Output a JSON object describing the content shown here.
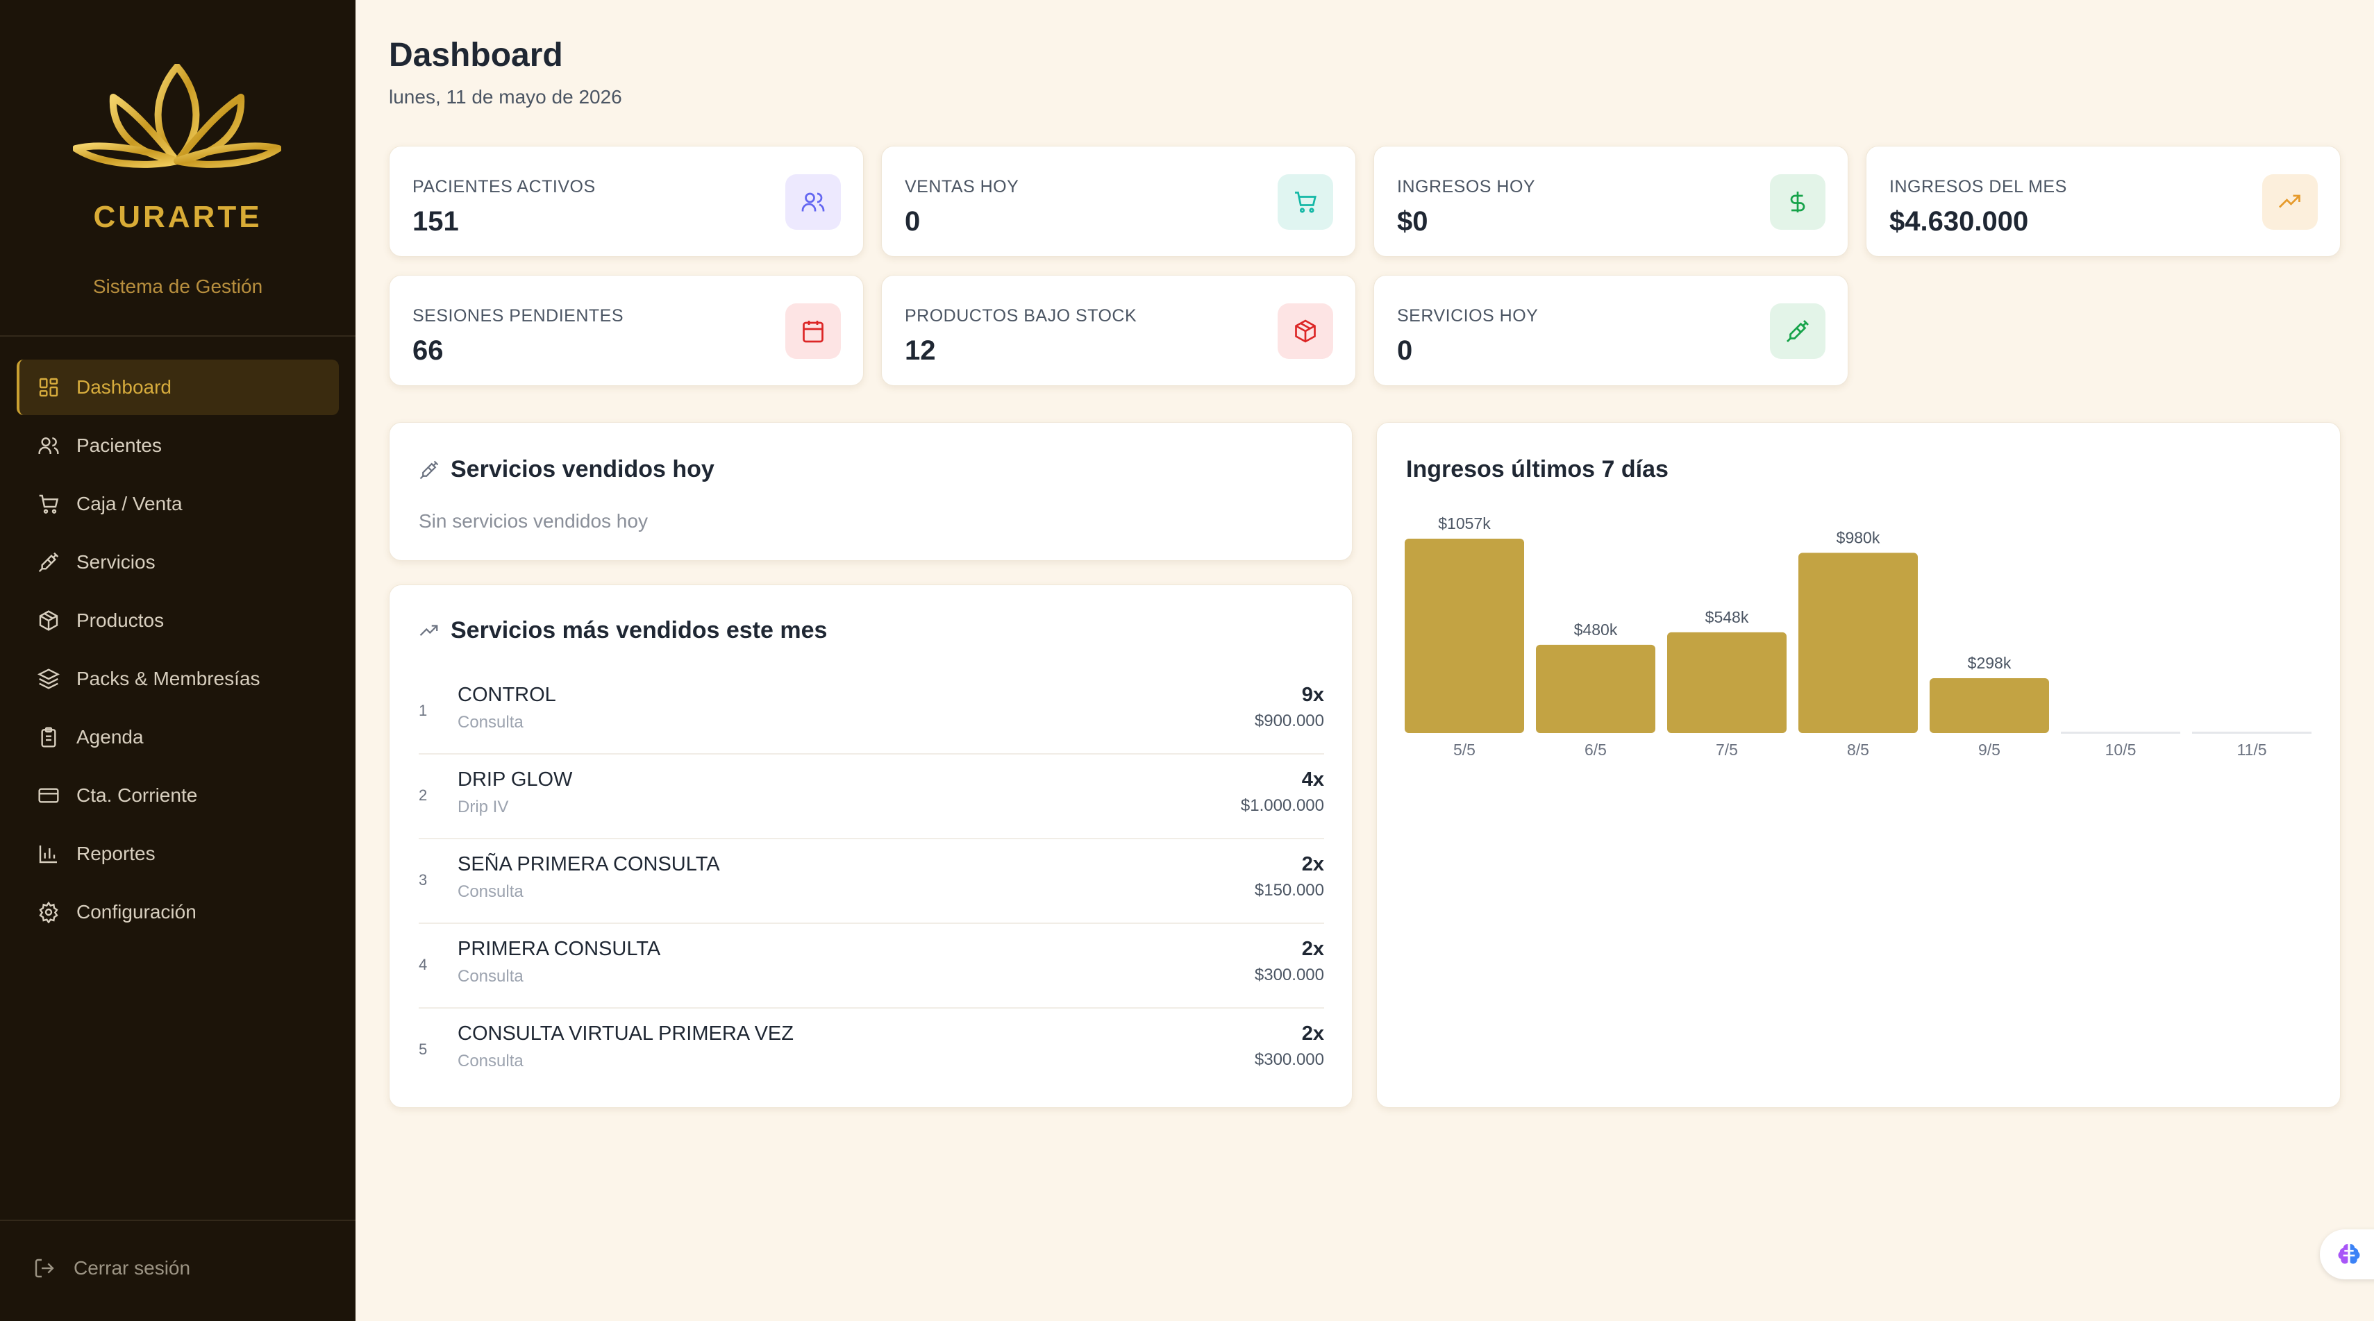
{
  "brand": {
    "name": "CURARTE",
    "subtitle": "Sistema de Gestión"
  },
  "nav": {
    "items": [
      {
        "label": "Dashboard",
        "icon": "dashboard-icon"
      },
      {
        "label": "Pacientes",
        "icon": "users-icon"
      },
      {
        "label": "Caja / Venta",
        "icon": "cart-icon"
      },
      {
        "label": "Servicios",
        "icon": "syringe-icon"
      },
      {
        "label": "Productos",
        "icon": "package-icon"
      },
      {
        "label": "Packs & Membresías",
        "icon": "layers-icon"
      },
      {
        "label": "Agenda",
        "icon": "clipboard-icon"
      },
      {
        "label": "Cta. Corriente",
        "icon": "credit-card-icon"
      },
      {
        "label": "Reportes",
        "icon": "bar-chart-icon"
      },
      {
        "label": "Configuración",
        "icon": "gear-icon"
      }
    ],
    "active": "Dashboard",
    "logout": "Cerrar sesión"
  },
  "header": {
    "title": "Dashboard",
    "date": "lunes, 11 de mayo de 2026"
  },
  "stats": [
    {
      "label": "PACIENTES ACTIVOS",
      "value": "151",
      "icon": "users-icon",
      "color": "#6366f1",
      "bg": "#ede9fe"
    },
    {
      "label": "VENTAS HOY",
      "value": "0",
      "icon": "cart-icon",
      "color": "#14b8a6",
      "bg": "#e0f5f1"
    },
    {
      "label": "INGRESOS HOY",
      "value": "$0",
      "icon": "dollar-icon",
      "color": "#16a34a",
      "bg": "#e3f4e8"
    },
    {
      "label": "INGRESOS DEL MES",
      "value": "$4.630.000",
      "icon": "trending-up-icon",
      "color": "#e69a2a",
      "bg": "#fcefdc"
    },
    {
      "label": "SESIONES PENDIENTES",
      "value": "66",
      "icon": "calendar-icon",
      "color": "#dc2626",
      "bg": "#fde4e4"
    },
    {
      "label": "PRODUCTOS BAJO STOCK",
      "value": "12",
      "icon": "package-icon",
      "color": "#dc2626",
      "bg": "#fde4e4"
    },
    {
      "label": "SERVICIOS HOY",
      "value": "0",
      "icon": "syringe-icon",
      "color": "#16a34a",
      "bg": "#e3f4e8"
    }
  ],
  "services_today": {
    "title": "Servicios vendidos hoy",
    "empty": "Sin servicios vendidos hoy"
  },
  "top_services": {
    "title": "Servicios más vendidos este mes",
    "items": [
      {
        "rank": "1",
        "name": "CONTROL",
        "category": "Consulta",
        "count": "9x",
        "amount": "$900.000"
      },
      {
        "rank": "2",
        "name": "DRIP GLOW",
        "category": "Drip IV",
        "count": "4x",
        "amount": "$1.000.000"
      },
      {
        "rank": "3",
        "name": "SEÑA PRIMERA CONSULTA",
        "category": "Consulta",
        "count": "2x",
        "amount": "$150.000"
      },
      {
        "rank": "4",
        "name": "PRIMERA CONSULTA",
        "category": "Consulta",
        "count": "2x",
        "amount": "$300.000"
      },
      {
        "rank": "5",
        "name": "CONSULTA VIRTUAL PRIMERA VEZ",
        "category": "Consulta",
        "count": "2x",
        "amount": "$300.000"
      }
    ]
  },
  "chart_data": {
    "type": "bar",
    "title": "Ingresos últimos 7 días",
    "categories": [
      "5/5",
      "6/5",
      "7/5",
      "8/5",
      "9/5",
      "10/5",
      "11/5"
    ],
    "values": [
      1057,
      480,
      548,
      980,
      298,
      0,
      0
    ],
    "labels": [
      "$1057k",
      "$480k",
      "$548k",
      "$980k",
      "$298k",
      "",
      ""
    ],
    "bar_color": "#c3a343",
    "grid": false
  }
}
